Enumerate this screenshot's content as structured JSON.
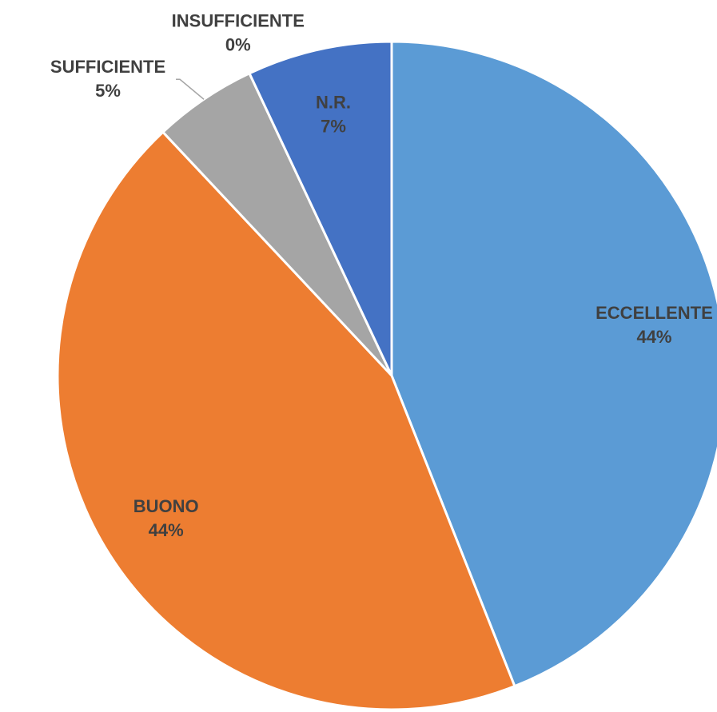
{
  "chart_data": {
    "type": "pie",
    "categories": [
      "ECCELLENTE",
      "BUONO",
      "SUFFICIENTE",
      "INSUFFICIENTE",
      "N.R."
    ],
    "values": [
      44,
      44,
      5,
      0,
      7
    ],
    "value_labels": [
      "44%",
      "44%",
      "5%",
      "0%",
      "7%"
    ],
    "colors": [
      "#5b9bd5",
      "#ed7d31",
      "#a5a5a5",
      "#ffc000",
      "#4472c4"
    ]
  }
}
